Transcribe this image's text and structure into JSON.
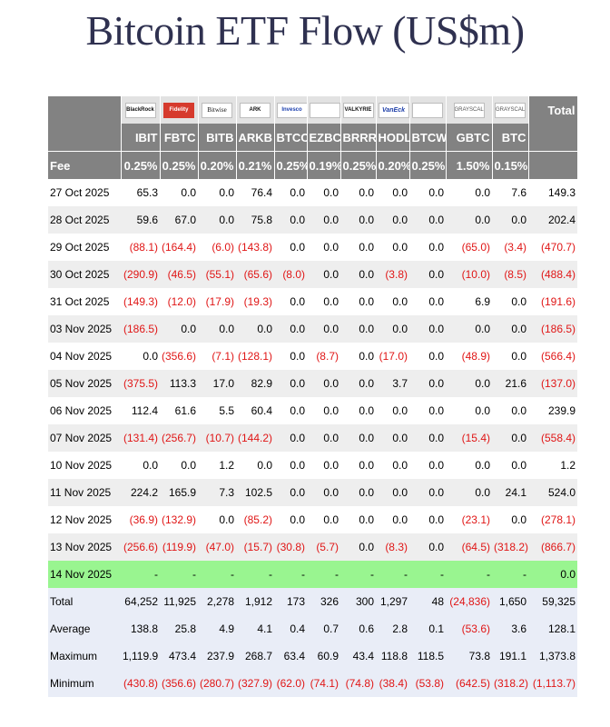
{
  "title": "Bitcoin ETF Flow (US$m)",
  "colors": {
    "header_bg": "#828282",
    "negative": "#e01616",
    "highlight_row": "#99f590",
    "stats_bg": "#e9edf7",
    "title": "#2f3150"
  },
  "issuers": [
    {
      "logo": "BlackRock",
      "icon": "blackrock-logo"
    },
    {
      "logo": "Fidelity",
      "icon": "fidelity-logo"
    },
    {
      "logo": "Bitwise",
      "icon": "bitwise-logo"
    },
    {
      "logo": "ARK",
      "icon": "ark-invest-logo"
    },
    {
      "logo": "Invesco",
      "icon": "invesco-logo"
    },
    {
      "logo": "",
      "icon": "franklin-templeton-logo"
    },
    {
      "logo": "VALKYRIE",
      "icon": "valkyrie-logo"
    },
    {
      "logo": "VanEck",
      "icon": "vaneck-logo"
    },
    {
      "logo": "",
      "icon": "wisdomtree-logo"
    },
    {
      "logo": "GRAYSCALE",
      "icon": "grayscale-logo"
    },
    {
      "logo": "GRAYSCALE",
      "icon": "grayscale-logo"
    }
  ],
  "total_header": "Total",
  "tickers": [
    "IBIT",
    "FBTC",
    "BITB",
    "ARKB",
    "BTCO",
    "EZBC",
    "BRRR",
    "HODL",
    "BTCW",
    "GBTC",
    "BTC"
  ],
  "fee_label": "Fee",
  "fees": [
    "0.25%",
    "0.25%",
    "0.20%",
    "0.21%",
    "0.25%",
    "0.19%",
    "0.25%",
    "0.20%",
    "0.25%",
    "1.50%",
    "0.15%"
  ],
  "rows": [
    {
      "date": "27 Oct 2025",
      "values": [
        "65.3",
        "0.0",
        "0.0",
        "76.4",
        "0.0",
        "0.0",
        "0.0",
        "0.0",
        "0.0",
        "0.0",
        "7.6"
      ],
      "total": "149.3"
    },
    {
      "date": "28 Oct 2025",
      "values": [
        "59.6",
        "67.0",
        "0.0",
        "75.8",
        "0.0",
        "0.0",
        "0.0",
        "0.0",
        "0.0",
        "0.0",
        "0.0"
      ],
      "total": "202.4"
    },
    {
      "date": "29 Oct 2025",
      "values": [
        "(88.1)",
        "(164.4)",
        "(6.0)",
        "(143.8)",
        "0.0",
        "0.0",
        "0.0",
        "0.0",
        "0.0",
        "(65.0)",
        "(3.4)"
      ],
      "total": "(470.7)"
    },
    {
      "date": "30 Oct 2025",
      "values": [
        "(290.9)",
        "(46.5)",
        "(55.1)",
        "(65.6)",
        "(8.0)",
        "0.0",
        "0.0",
        "(3.8)",
        "0.0",
        "(10.0)",
        "(8.5)"
      ],
      "total": "(488.4)"
    },
    {
      "date": "31 Oct 2025",
      "values": [
        "(149.3)",
        "(12.0)",
        "(17.9)",
        "(19.3)",
        "0.0",
        "0.0",
        "0.0",
        "0.0",
        "0.0",
        "6.9",
        "0.0"
      ],
      "total": "(191.6)"
    },
    {
      "date": "03 Nov 2025",
      "values": [
        "(186.5)",
        "0.0",
        "0.0",
        "0.0",
        "0.0",
        "0.0",
        "0.0",
        "0.0",
        "0.0",
        "0.0",
        "0.0"
      ],
      "total": "(186.5)"
    },
    {
      "date": "04 Nov 2025",
      "values": [
        "0.0",
        "(356.6)",
        "(7.1)",
        "(128.1)",
        "0.0",
        "(8.7)",
        "0.0",
        "(17.0)",
        "0.0",
        "(48.9)",
        "0.0"
      ],
      "total": "(566.4)"
    },
    {
      "date": "05 Nov 2025",
      "values": [
        "(375.5)",
        "113.3",
        "17.0",
        "82.9",
        "0.0",
        "0.0",
        "0.0",
        "3.7",
        "0.0",
        "0.0",
        "21.6"
      ],
      "total": "(137.0)"
    },
    {
      "date": "06 Nov 2025",
      "values": [
        "112.4",
        "61.6",
        "5.5",
        "60.4",
        "0.0",
        "0.0",
        "0.0",
        "0.0",
        "0.0",
        "0.0",
        "0.0"
      ],
      "total": "239.9"
    },
    {
      "date": "07 Nov 2025",
      "values": [
        "(131.4)",
        "(256.7)",
        "(10.7)",
        "(144.2)",
        "0.0",
        "0.0",
        "0.0",
        "0.0",
        "0.0",
        "(15.4)",
        "0.0"
      ],
      "total": "(558.4)"
    },
    {
      "date": "10 Nov 2025",
      "values": [
        "0.0",
        "0.0",
        "1.2",
        "0.0",
        "0.0",
        "0.0",
        "0.0",
        "0.0",
        "0.0",
        "0.0",
        "0.0"
      ],
      "total": "1.2"
    },
    {
      "date": "11 Nov 2025",
      "values": [
        "224.2",
        "165.9",
        "7.3",
        "102.5",
        "0.0",
        "0.0",
        "0.0",
        "0.0",
        "0.0",
        "0.0",
        "24.1"
      ],
      "total": "524.0"
    },
    {
      "date": "12 Nov 2025",
      "values": [
        "(36.9)",
        "(132.9)",
        "0.0",
        "(85.2)",
        "0.0",
        "0.0",
        "0.0",
        "0.0",
        "0.0",
        "(23.1)",
        "0.0"
      ],
      "total": "(278.1)"
    },
    {
      "date": "13 Nov 2025",
      "values": [
        "(256.6)",
        "(119.9)",
        "(47.0)",
        "(15.7)",
        "(30.8)",
        "(5.7)",
        "0.0",
        "(8.3)",
        "0.0",
        "(64.5)",
        "(318.2)"
      ],
      "total": "(866.7)"
    },
    {
      "date": "14 Nov 2025",
      "values": [
        "-",
        "-",
        "-",
        "-",
        "-",
        "-",
        "-",
        "-",
        "-",
        "-",
        "-"
      ],
      "total": "0.0",
      "highlight": true
    }
  ],
  "stats": [
    {
      "label": "Total",
      "values": [
        "64,252",
        "11,925",
        "2,278",
        "1,912",
        "173",
        "326",
        "300",
        "1,297",
        "48",
        "(24,836)",
        "1,650"
      ],
      "total": "59,325"
    },
    {
      "label": "Average",
      "values": [
        "138.8",
        "25.8",
        "4.9",
        "4.1",
        "0.4",
        "0.7",
        "0.6",
        "2.8",
        "0.1",
        "(53.6)",
        "3.6"
      ],
      "total": "128.1"
    },
    {
      "label": "Maximum",
      "values": [
        "1,119.9",
        "473.4",
        "237.9",
        "268.7",
        "63.4",
        "60.9",
        "43.4",
        "118.8",
        "118.5",
        "73.8",
        "191.1"
      ],
      "total": "1,373.8"
    },
    {
      "label": "Minimum",
      "values": [
        "(430.8)",
        "(356.6)",
        "(280.7)",
        "(327.9)",
        "(62.0)",
        "(74.1)",
        "(74.8)",
        "(38.4)",
        "(53.8)",
        "(642.5)",
        "(318.2)"
      ],
      "total": "(1,113.7)"
    }
  ]
}
